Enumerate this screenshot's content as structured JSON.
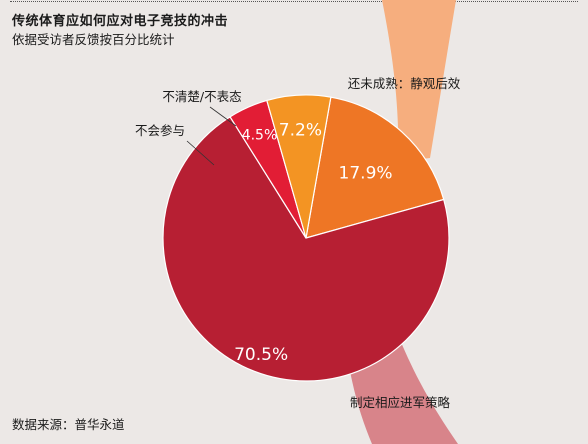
{
  "header": {
    "title": "传统体育应如何应对电子竞技的冲击",
    "subtitle": "依据受访者反馈按百分比统计"
  },
  "footer": {
    "source": "数据来源：普华永道"
  },
  "chart_data": {
    "type": "pie",
    "title": "传统体育应如何应对电子竞技的冲击",
    "subtitle": "依据受访者反馈按百分比统计",
    "slices": [
      {
        "label": "还未成熟：静观后效",
        "value": 17.9,
        "value_label": "17.9%",
        "color": "#ee7625"
      },
      {
        "label": "制定相应进军策略",
        "value": 70.5,
        "value_label": "70.5%",
        "color": "#b71f33"
      },
      {
        "label": "不会参与",
        "value": 4.5,
        "value_label": "4.5%",
        "color": "#e21d35"
      },
      {
        "label": "不清楚/不表态",
        "value": 7.2,
        "value_label": "7.2%",
        "color": "#f39423"
      }
    ],
    "start_angle_deg": 10,
    "band_colors": {
      "upper": "#f6ae7e",
      "lower": "#d8848a"
    }
  }
}
